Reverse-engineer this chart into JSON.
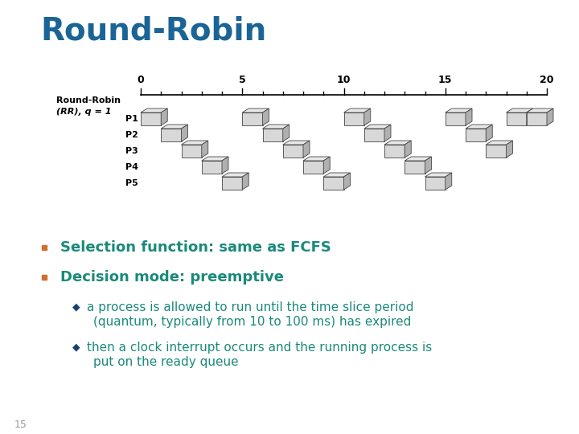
{
  "title": "Round-Robin",
  "title_color": "#1a6496",
  "title_fontsize": 28,
  "title_weight": "bold",
  "bg_color": "#ffffff",
  "bullet_color": "#d07030",
  "text_color": "#1a8a7a",
  "sub_text_color": "#1a8a7a",
  "diamond_color": "#1a4070",
  "bullet1": "Selection function: same as FCFS",
  "bullet2": "Decision mode: preemptive",
  "sub1_line1": "a process is allowed to run until the time slice period",
  "sub1_line2": "(quantum, typically from 10 to 100 ms) has expired",
  "sub2_line1": "then a clock interrupt occurs and the running process is",
  "sub2_line2": "put on the ready queue",
  "page_num": "15",
  "diagram_label_line1": "Round-Robin",
  "diagram_label_line2": "(RR), q = 1",
  "bar_face_color": "#d8d8d8",
  "bar_top_color": "#e8e8e8",
  "bar_right_color": "#b0b0b0",
  "bar_edge_color": "#444444",
  "process_labels": [
    "P1",
    "P2",
    "P3",
    "P4",
    "P5"
  ],
  "bursts": [
    6,
    4,
    4,
    3,
    3
  ]
}
